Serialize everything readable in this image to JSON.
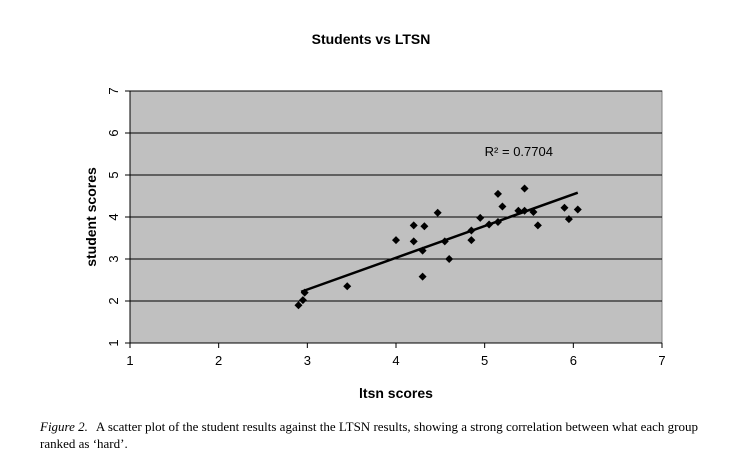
{
  "chart_data": {
    "type": "scatter",
    "title": "Students vs LTSN",
    "xlabel": "ltsn scores",
    "ylabel": "student scores",
    "xlim": [
      1,
      7
    ],
    "ylim": [
      1,
      7
    ],
    "xticks": [
      1,
      2,
      3,
      4,
      5,
      6,
      7
    ],
    "yticks": [
      1,
      2,
      3,
      4,
      5,
      6,
      7
    ],
    "grid": true,
    "plot_background": "#c0c0c0",
    "point_color": "#000000",
    "trendline": {
      "type": "linear",
      "x": [
        2.93,
        6.05
      ],
      "y": [
        2.22,
        4.58
      ],
      "label": "R² = 0.7704"
    },
    "points": [
      {
        "x": 2.9,
        "y": 1.9
      },
      {
        "x": 2.95,
        "y": 2.02
      },
      {
        "x": 2.97,
        "y": 2.2
      },
      {
        "x": 3.45,
        "y": 2.35
      },
      {
        "x": 4.0,
        "y": 3.45
      },
      {
        "x": 4.2,
        "y": 3.8
      },
      {
        "x": 4.2,
        "y": 3.42
      },
      {
        "x": 4.3,
        "y": 3.2
      },
      {
        "x": 4.32,
        "y": 3.78
      },
      {
        "x": 4.3,
        "y": 2.58
      },
      {
        "x": 4.47,
        "y": 4.1
      },
      {
        "x": 4.55,
        "y": 3.42
      },
      {
        "x": 4.6,
        "y": 3.0
      },
      {
        "x": 4.85,
        "y": 3.45
      },
      {
        "x": 4.85,
        "y": 3.68
      },
      {
        "x": 4.95,
        "y": 3.98
      },
      {
        "x": 5.05,
        "y": 3.82
      },
      {
        "x": 5.15,
        "y": 3.88
      },
      {
        "x": 5.15,
        "y": 4.55
      },
      {
        "x": 5.2,
        "y": 4.25
      },
      {
        "x": 5.38,
        "y": 4.15
      },
      {
        "x": 5.45,
        "y": 4.68
      },
      {
        "x": 5.45,
        "y": 4.15
      },
      {
        "x": 5.55,
        "y": 4.12
      },
      {
        "x": 5.6,
        "y": 3.8
      },
      {
        "x": 5.9,
        "y": 4.22
      },
      {
        "x": 5.95,
        "y": 3.95
      },
      {
        "x": 6.05,
        "y": 4.18
      }
    ]
  },
  "caption": {
    "label": "Figure 2.",
    "text": "A scatter plot of the student results against the LTSN results, showing a strong correlation between what each group ranked as ‘hard’."
  }
}
